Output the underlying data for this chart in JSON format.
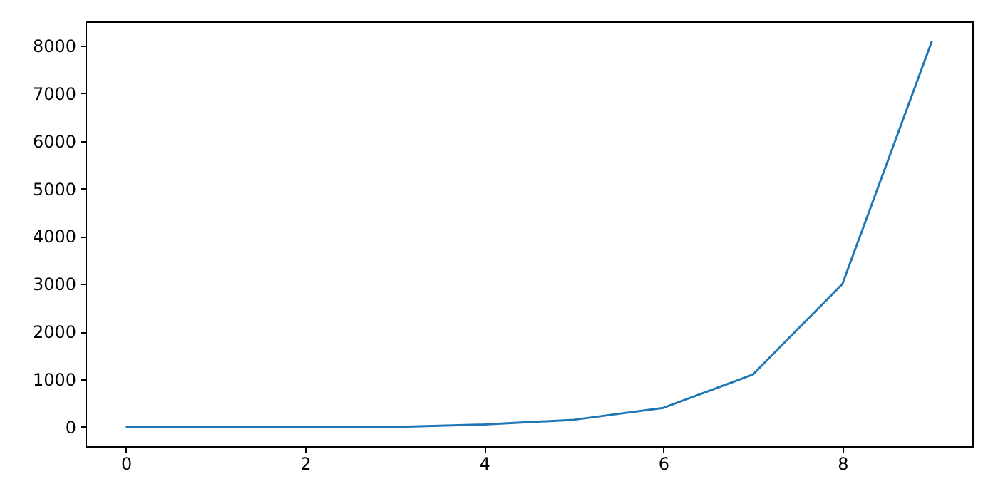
{
  "chart_data": {
    "type": "line",
    "x": [
      0,
      1,
      2,
      3,
      4,
      5,
      6,
      7,
      8,
      9
    ],
    "series": [
      {
        "color": "#1f77b4",
        "values": [
          0,
          0,
          0,
          0,
          50,
          150,
          400,
          1100,
          3000,
          8100
        ]
      }
    ],
    "xlim": [
      -0.45,
      9.45
    ],
    "xticks": [
      0,
      2,
      4,
      6,
      8
    ],
    "ylim": [
      -405,
      8508
    ],
    "yticks": [
      0,
      1000,
      2000,
      3000,
      4000,
      5000,
      6000,
      7000,
      8000
    ],
    "grid": false,
    "marker": "none",
    "line_style": "solid"
  }
}
